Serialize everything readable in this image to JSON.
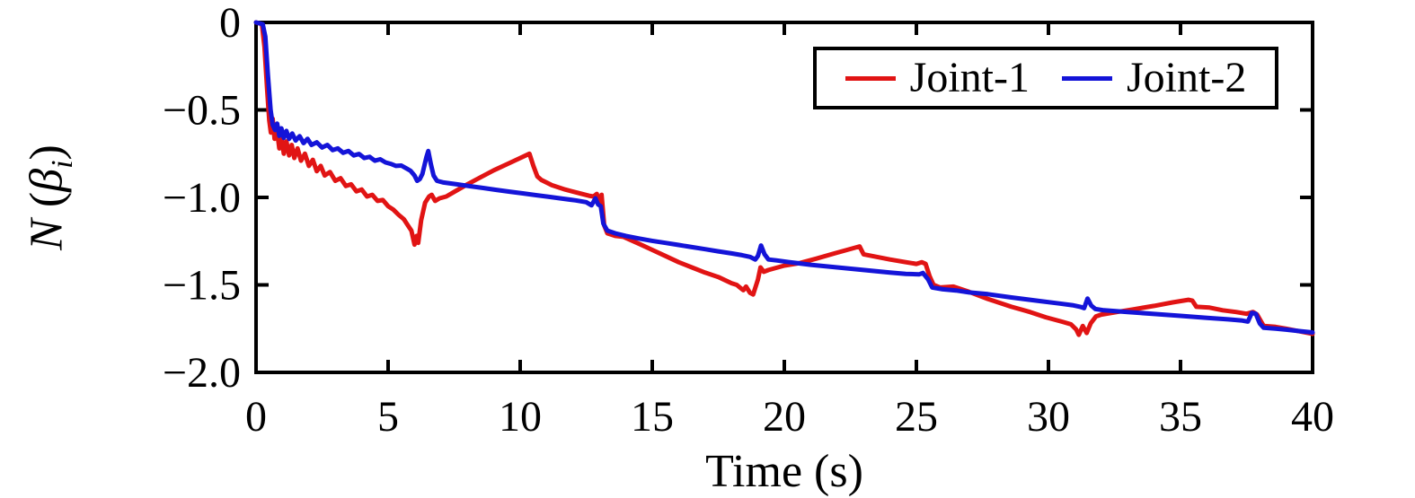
{
  "figure": {
    "xlabel": "Time (s)",
    "ylabel_parts": {
      "var": "N",
      "open": " (",
      "beta": "β",
      "sub": "i",
      "close": ")"
    }
  },
  "legend": {
    "items": [
      {
        "label": "Joint-1",
        "color": "#e11414"
      },
      {
        "label": "Joint-2",
        "color": "#1414d8"
      }
    ]
  },
  "chart_data": {
    "type": "line",
    "title": "",
    "xlabel": "Time (s)",
    "ylabel": "N (beta_i)",
    "xlim": [
      0,
      40
    ],
    "ylim": [
      -2.0,
      0
    ],
    "xticks": [
      0,
      5,
      10,
      15,
      20,
      25,
      30,
      35,
      40
    ],
    "xtick_labels": [
      "0",
      "5",
      "10",
      "15",
      "20",
      "25",
      "30",
      "35",
      "40"
    ],
    "yticks": [
      0,
      -0.5,
      -1.0,
      -1.5,
      -2.0
    ],
    "ytick_labels": [
      "0",
      "−0.5",
      "−1.0",
      "−1.5",
      "−2.0"
    ],
    "grid": false,
    "legend_position": "upper right",
    "axis_color": "#000000",
    "series": [
      {
        "name": "Joint-1",
        "color": "#e11414",
        "points": [
          [
            0,
            0
          ],
          [
            0.22,
            -0.01
          ],
          [
            0.32,
            -0.14
          ],
          [
            0.42,
            -0.38
          ],
          [
            0.5,
            -0.56
          ],
          [
            0.56,
            -0.63
          ],
          [
            0.63,
            -0.55
          ],
          [
            0.7,
            -0.665
          ],
          [
            0.78,
            -0.6
          ],
          [
            0.88,
            -0.72
          ],
          [
            0.97,
            -0.66
          ],
          [
            1.05,
            -0.75
          ],
          [
            1.15,
            -0.68
          ],
          [
            1.25,
            -0.76
          ],
          [
            1.35,
            -0.7
          ],
          [
            1.45,
            -0.775
          ],
          [
            1.57,
            -0.72
          ],
          [
            1.7,
            -0.79
          ],
          [
            1.85,
            -0.75
          ],
          [
            2,
            -0.82
          ],
          [
            2.15,
            -0.785
          ],
          [
            2.3,
            -0.85
          ],
          [
            2.45,
            -0.82
          ],
          [
            2.6,
            -0.875
          ],
          [
            2.8,
            -0.855
          ],
          [
            3,
            -0.905
          ],
          [
            3.2,
            -0.89
          ],
          [
            3.4,
            -0.935
          ],
          [
            3.6,
            -0.925
          ],
          [
            3.8,
            -0.965
          ],
          [
            4,
            -0.955
          ],
          [
            4.2,
            -0.995
          ],
          [
            4.4,
            -0.985
          ],
          [
            4.6,
            -1.02
          ],
          [
            4.8,
            -1.015
          ],
          [
            5,
            -1.05
          ],
          [
            5.2,
            -1.07
          ],
          [
            5.4,
            -1.1
          ],
          [
            5.6,
            -1.125
          ],
          [
            5.75,
            -1.16
          ],
          [
            5.88,
            -1.19
          ],
          [
            6,
            -1.27
          ],
          [
            6.08,
            -1.22
          ],
          [
            6.14,
            -1.26
          ],
          [
            6.25,
            -1.13
          ],
          [
            6.4,
            -1.03
          ],
          [
            6.55,
            -0.995
          ],
          [
            6.65,
            -0.985
          ],
          [
            6.78,
            -1.02
          ],
          [
            6.95,
            -1.005
          ],
          [
            7.2,
            -0.995
          ],
          [
            7.6,
            -0.96
          ],
          [
            8,
            -0.925
          ],
          [
            8.5,
            -0.885
          ],
          [
            9,
            -0.845
          ],
          [
            9.5,
            -0.81
          ],
          [
            10,
            -0.775
          ],
          [
            10.35,
            -0.75
          ],
          [
            10.5,
            -0.82
          ],
          [
            10.65,
            -0.88
          ],
          [
            10.8,
            -0.9
          ],
          [
            11.2,
            -0.93
          ],
          [
            11.7,
            -0.955
          ],
          [
            12.2,
            -0.975
          ],
          [
            12.6,
            -0.99
          ],
          [
            12.78,
            -0.995
          ],
          [
            12.9,
            -0.98
          ],
          [
            13,
            -1.035
          ],
          [
            13.08,
            -0.985
          ],
          [
            13.18,
            -1.16
          ],
          [
            13.3,
            -1.205
          ],
          [
            13.6,
            -1.22
          ],
          [
            13.9,
            -1.225
          ],
          [
            14.5,
            -1.265
          ],
          [
            15,
            -1.3
          ],
          [
            15.5,
            -1.335
          ],
          [
            16,
            -1.37
          ],
          [
            16.5,
            -1.4
          ],
          [
            17,
            -1.43
          ],
          [
            17.5,
            -1.455
          ],
          [
            18,
            -1.49
          ],
          [
            18.2,
            -1.5
          ],
          [
            18.32,
            -1.515
          ],
          [
            18.45,
            -1.53
          ],
          [
            18.55,
            -1.51
          ],
          [
            18.7,
            -1.545
          ],
          [
            18.82,
            -1.555
          ],
          [
            19,
            -1.47
          ],
          [
            19.1,
            -1.4
          ],
          [
            19.22,
            -1.425
          ],
          [
            19.4,
            -1.415
          ],
          [
            20,
            -1.39
          ],
          [
            20.6,
            -1.375
          ],
          [
            21.2,
            -1.35
          ],
          [
            21.9,
            -1.32
          ],
          [
            22.5,
            -1.295
          ],
          [
            22.85,
            -1.28
          ],
          [
            23,
            -1.325
          ],
          [
            23.5,
            -1.34
          ],
          [
            24,
            -1.355
          ],
          [
            24.6,
            -1.37
          ],
          [
            25,
            -1.38
          ],
          [
            25.2,
            -1.37
          ],
          [
            25.35,
            -1.38
          ],
          [
            25.5,
            -1.45
          ],
          [
            25.65,
            -1.5
          ],
          [
            25.9,
            -1.515
          ],
          [
            26.4,
            -1.51
          ],
          [
            27,
            -1.54
          ],
          [
            27.7,
            -1.58
          ],
          [
            28.6,
            -1.625
          ],
          [
            29.3,
            -1.655
          ],
          [
            29.9,
            -1.685
          ],
          [
            30.5,
            -1.71
          ],
          [
            30.85,
            -1.725
          ],
          [
            31.05,
            -1.755
          ],
          [
            31.15,
            -1.785
          ],
          [
            31.3,
            -1.735
          ],
          [
            31.45,
            -1.775
          ],
          [
            31.6,
            -1.72
          ],
          [
            31.8,
            -1.68
          ],
          [
            32,
            -1.67
          ],
          [
            32.6,
            -1.655
          ],
          [
            33.2,
            -1.64
          ],
          [
            34,
            -1.62
          ],
          [
            34.7,
            -1.6
          ],
          [
            35.3,
            -1.585
          ],
          [
            35.45,
            -1.59
          ],
          [
            35.6,
            -1.625
          ],
          [
            36.1,
            -1.63
          ],
          [
            36.6,
            -1.645
          ],
          [
            37.1,
            -1.655
          ],
          [
            37.5,
            -1.665
          ],
          [
            37.75,
            -1.655
          ],
          [
            37.9,
            -1.67
          ],
          [
            38.05,
            -1.71
          ],
          [
            38.15,
            -1.735
          ],
          [
            38.6,
            -1.74
          ],
          [
            39,
            -1.75
          ],
          [
            39.5,
            -1.765
          ],
          [
            40,
            -1.78
          ]
        ]
      },
      {
        "name": "Joint-2",
        "color": "#1414d8",
        "points": [
          [
            0,
            0
          ],
          [
            0.25,
            -0.01
          ],
          [
            0.35,
            -0.08
          ],
          [
            0.45,
            -0.3
          ],
          [
            0.55,
            -0.5
          ],
          [
            0.63,
            -0.585
          ],
          [
            0.72,
            -0.615
          ],
          [
            0.8,
            -0.578
          ],
          [
            0.88,
            -0.648
          ],
          [
            0.96,
            -0.605
          ],
          [
            1.05,
            -0.66
          ],
          [
            1.15,
            -0.62
          ],
          [
            1.25,
            -0.665
          ],
          [
            1.37,
            -0.635
          ],
          [
            1.5,
            -0.675
          ],
          [
            1.65,
            -0.65
          ],
          [
            1.8,
            -0.69
          ],
          [
            1.95,
            -0.665
          ],
          [
            2.1,
            -0.7
          ],
          [
            2.3,
            -0.685
          ],
          [
            2.5,
            -0.715
          ],
          [
            2.7,
            -0.7
          ],
          [
            2.9,
            -0.73
          ],
          [
            3.1,
            -0.72
          ],
          [
            3.3,
            -0.745
          ],
          [
            3.5,
            -0.735
          ],
          [
            3.7,
            -0.76
          ],
          [
            3.9,
            -0.752
          ],
          [
            4.1,
            -0.775
          ],
          [
            4.3,
            -0.768
          ],
          [
            4.5,
            -0.79
          ],
          [
            4.7,
            -0.782
          ],
          [
            4.9,
            -0.8
          ],
          [
            5.1,
            -0.808
          ],
          [
            5.3,
            -0.82
          ],
          [
            5.5,
            -0.818
          ],
          [
            5.7,
            -0.835
          ],
          [
            5.85,
            -0.848
          ],
          [
            6,
            -0.875
          ],
          [
            6.1,
            -0.905
          ],
          [
            6.2,
            -0.895
          ],
          [
            6.3,
            -0.865
          ],
          [
            6.45,
            -0.77
          ],
          [
            6.52,
            -0.735
          ],
          [
            6.62,
            -0.81
          ],
          [
            6.72,
            -0.875
          ],
          [
            6.85,
            -0.905
          ],
          [
            7.1,
            -0.915
          ],
          [
            7.6,
            -0.925
          ],
          [
            8.1,
            -0.936
          ],
          [
            8.6,
            -0.946
          ],
          [
            9.1,
            -0.957
          ],
          [
            9.6,
            -0.967
          ],
          [
            10.1,
            -0.977
          ],
          [
            10.6,
            -0.987
          ],
          [
            11.1,
            -0.997
          ],
          [
            11.6,
            -1.007
          ],
          [
            12.1,
            -1.017
          ],
          [
            12.5,
            -1.027
          ],
          [
            12.7,
            -1.045
          ],
          [
            12.85,
            -1.005
          ],
          [
            12.95,
            -1.04
          ],
          [
            13.05,
            -1.05
          ],
          [
            13.15,
            -1.15
          ],
          [
            13.3,
            -1.19
          ],
          [
            13.6,
            -1.205
          ],
          [
            14,
            -1.22
          ],
          [
            14.5,
            -1.235
          ],
          [
            15,
            -1.248
          ],
          [
            15.5,
            -1.26
          ],
          [
            16,
            -1.272
          ],
          [
            16.5,
            -1.284
          ],
          [
            17,
            -1.296
          ],
          [
            17.5,
            -1.308
          ],
          [
            18,
            -1.32
          ],
          [
            18.4,
            -1.33
          ],
          [
            18.7,
            -1.34
          ],
          [
            18.9,
            -1.355
          ],
          [
            19,
            -1.335
          ],
          [
            19.12,
            -1.275
          ],
          [
            19.25,
            -1.325
          ],
          [
            19.4,
            -1.355
          ],
          [
            19.7,
            -1.36
          ],
          [
            20.2,
            -1.37
          ],
          [
            21,
            -1.385
          ],
          [
            22,
            -1.4
          ],
          [
            23,
            -1.415
          ],
          [
            24,
            -1.43
          ],
          [
            24.6,
            -1.437
          ],
          [
            25.1,
            -1.44
          ],
          [
            25.25,
            -1.432
          ],
          [
            25.45,
            -1.47
          ],
          [
            25.6,
            -1.515
          ],
          [
            26,
            -1.525
          ],
          [
            26.5,
            -1.532
          ],
          [
            27,
            -1.543
          ],
          [
            27.7,
            -1.553
          ],
          [
            28.6,
            -1.572
          ],
          [
            29.7,
            -1.593
          ],
          [
            30.4,
            -1.606
          ],
          [
            30.9,
            -1.616
          ],
          [
            31.2,
            -1.625
          ],
          [
            31.35,
            -1.633
          ],
          [
            31.48,
            -1.578
          ],
          [
            31.62,
            -1.618
          ],
          [
            31.78,
            -1.638
          ],
          [
            32.1,
            -1.645
          ],
          [
            33,
            -1.655
          ],
          [
            34,
            -1.666
          ],
          [
            35,
            -1.677
          ],
          [
            36,
            -1.688
          ],
          [
            36.8,
            -1.697
          ],
          [
            37.3,
            -1.703
          ],
          [
            37.55,
            -1.71
          ],
          [
            37.7,
            -1.66
          ],
          [
            37.85,
            -1.665
          ],
          [
            38,
            -1.72
          ],
          [
            38.15,
            -1.745
          ],
          [
            38.6,
            -1.75
          ],
          [
            39,
            -1.756
          ],
          [
            39.5,
            -1.764
          ],
          [
            40,
            -1.772
          ]
        ]
      }
    ]
  }
}
